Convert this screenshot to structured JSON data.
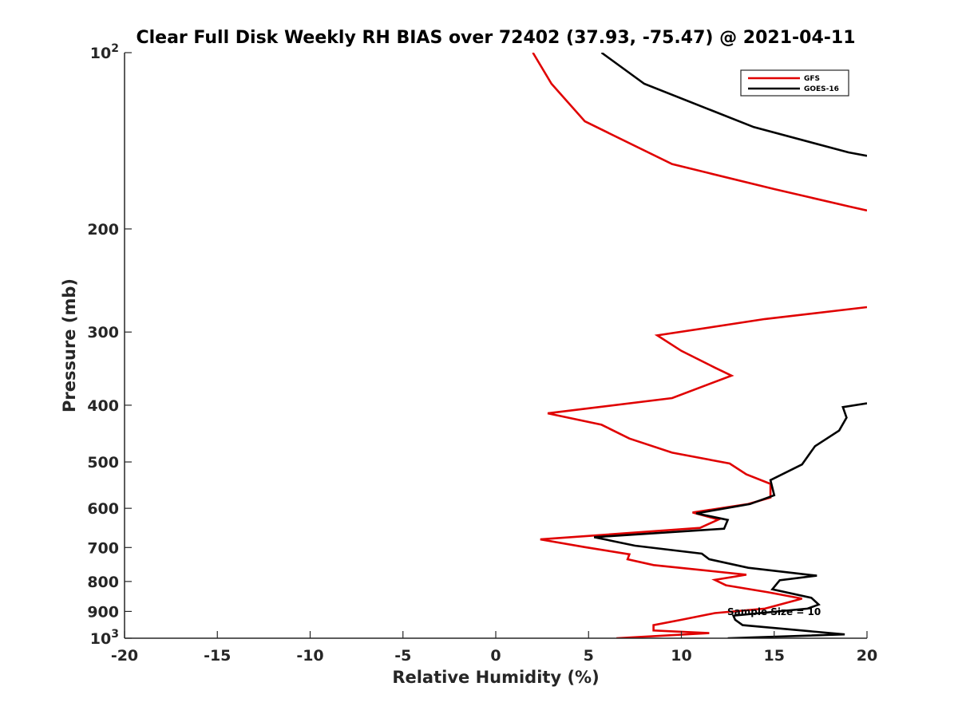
{
  "chart_data": {
    "type": "line",
    "title": "Clear Full Disk Weekly RH BIAS over 72402 (37.93, -75.47) @ 2021-04-11",
    "xlabel": "Relative Humidity (%)",
    "ylabel": "Pressure (mb)",
    "xlim": [
      -20,
      20
    ],
    "ylim": [
      100,
      1000
    ],
    "yscale": "log",
    "y_reversed": true,
    "xticks": [
      -20,
      -15,
      -10,
      -5,
      0,
      5,
      10,
      15,
      20
    ],
    "xtick_labels": [
      "-20",
      "-15",
      "-10",
      "-5",
      "0",
      "5",
      "10",
      "15",
      "20"
    ],
    "yticks": [
      100,
      200,
      300,
      400,
      500,
      600,
      700,
      800,
      900,
      1000
    ],
    "ytick_labels": [
      {
        "base": "10",
        "exp": "2"
      },
      {
        "base": "200"
      },
      {
        "base": "300"
      },
      {
        "base": "400"
      },
      {
        "base": "500"
      },
      {
        "base": "600"
      },
      {
        "base": "700"
      },
      {
        "base": "800"
      },
      {
        "base": "900"
      },
      {
        "base": "10",
        "exp": "3"
      }
    ],
    "grid": false,
    "legend_position": "top-right",
    "annotation": "Sample Size = 10",
    "series": [
      {
        "name": "GFS",
        "color": "#e00000",
        "segments": [
          [
            [
              2.0,
              100
            ],
            [
              3.0,
              113
            ],
            [
              4.8,
              131
            ],
            [
              9.5,
              155
            ],
            [
              15,
              171
            ],
            [
              19,
              183
            ],
            [
              20,
              186
            ]
          ],
          [
            [
              20,
              272
            ],
            [
              14.5,
              285
            ],
            [
              8.7,
              304
            ],
            [
              10,
              323
            ],
            [
              11.8,
              345
            ],
            [
              12.7,
              356
            ],
            [
              9.5,
              389
            ],
            [
              2.8,
              413
            ],
            [
              5.7,
              432
            ],
            [
              7.2,
              456
            ],
            [
              9.5,
              482
            ],
            [
              12.6,
              503
            ],
            [
              13.5,
              525
            ],
            [
              14.8,
              545
            ],
            [
              14.8,
              575
            ],
            [
              13.6,
              590
            ],
            [
              10.6,
              610
            ],
            [
              12.0,
              627
            ],
            [
              11.0,
              648
            ],
            [
              2.4,
              678
            ],
            [
              4.8,
              699
            ],
            [
              7.2,
              719
            ],
            [
              7.1,
              733
            ],
            [
              8.5,
              750
            ],
            [
              13.5,
              779
            ],
            [
              11.8,
              795
            ],
            [
              12.4,
              812
            ],
            [
              14.7,
              835
            ],
            [
              16.5,
              856
            ],
            [
              14.5,
              890
            ],
            [
              11.8,
              906
            ],
            [
              10.0,
              930
            ],
            [
              8.5,
              950
            ],
            [
              8.5,
              970
            ],
            [
              11.5,
              980
            ],
            [
              6.5,
              1000
            ]
          ]
        ]
      },
      {
        "name": "GOES-16",
        "color": "#000000",
        "segments": [
          [
            [
              5.7,
              100
            ],
            [
              8.0,
              113
            ],
            [
              13.9,
              134
            ],
            [
              19,
              148
            ],
            [
              20,
              150
            ]
          ],
          [
            [
              20,
              397
            ],
            [
              18.7,
              403
            ],
            [
              18.9,
              420
            ],
            [
              18.5,
              442
            ],
            [
              17.2,
              470
            ],
            [
              16.5,
              505
            ],
            [
              14.8,
              537
            ],
            [
              15.0,
              570
            ],
            [
              13.7,
              590
            ],
            [
              10.8,
              612
            ],
            [
              12.5,
              628
            ],
            [
              12.3,
              650
            ],
            [
              5.3,
              672
            ],
            [
              7.5,
              695
            ],
            [
              11.1,
              717
            ],
            [
              11.5,
              733
            ],
            [
              13.6,
              758
            ],
            [
              17.3,
              782
            ],
            [
              15.3,
              796
            ],
            [
              14.9,
              825
            ],
            [
              17.0,
              853
            ],
            [
              17.4,
              876
            ],
            [
              16.8,
              890
            ],
            [
              12.8,
              915
            ],
            [
              12.9,
              930
            ],
            [
              13.3,
              950
            ],
            [
              18.8,
              985
            ],
            [
              12.5,
              1000
            ]
          ]
        ]
      }
    ]
  }
}
